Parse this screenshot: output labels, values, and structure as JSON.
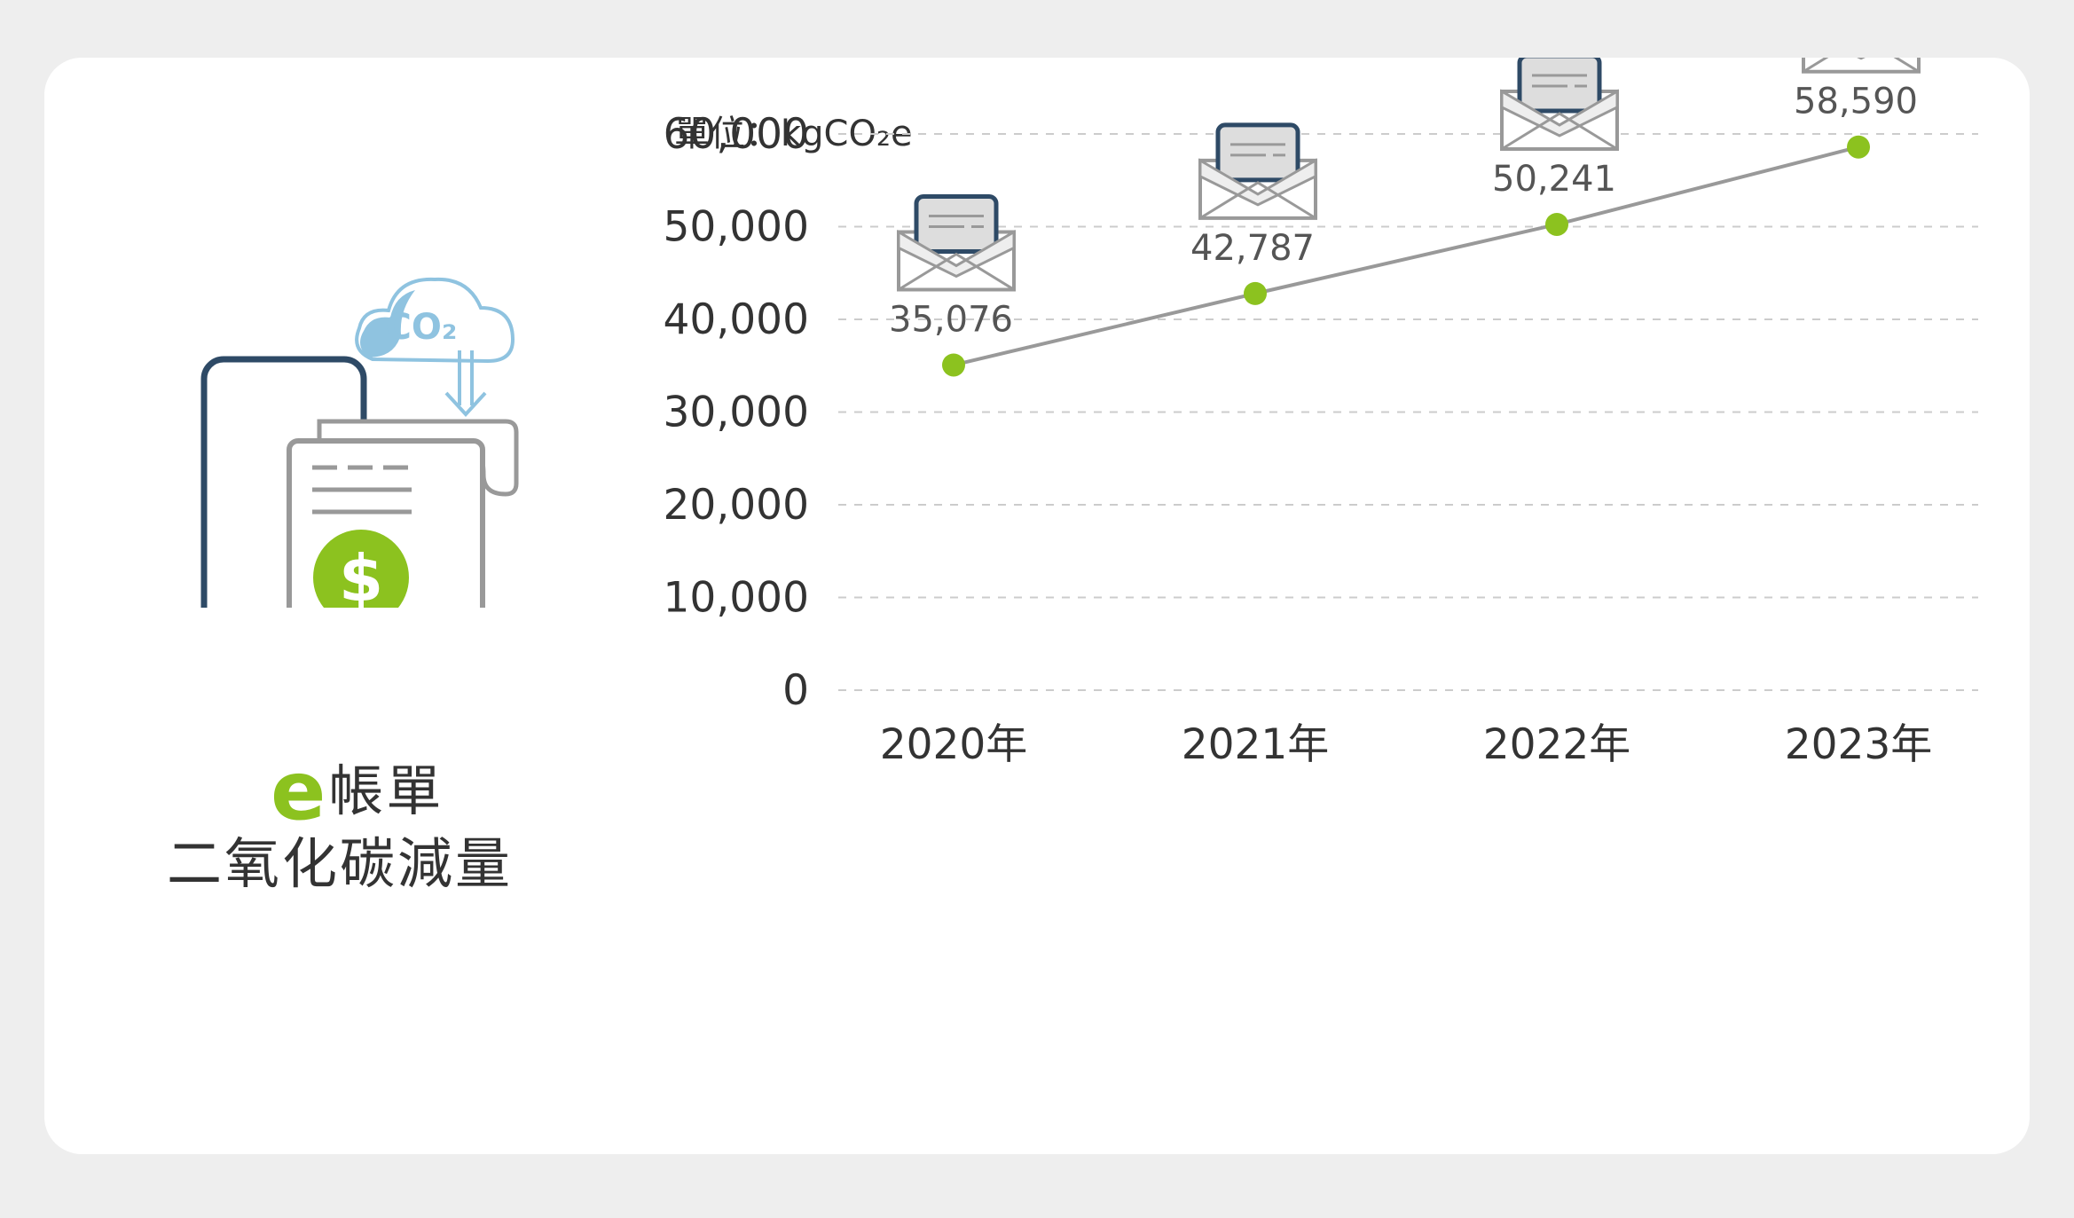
{
  "illustration": {
    "title_prefix": "e",
    "title_line1": "帳單",
    "title_line2": "二氧化碳減量",
    "cloud_label": "CO₂",
    "coin_symbol": "$"
  },
  "chart_data": {
    "type": "line",
    "unit_label": "單位：kgCO₂e",
    "categories": [
      "2020年",
      "2021年",
      "2022年",
      "2023年"
    ],
    "values": [
      35076,
      42787,
      50241,
      58590
    ],
    "value_labels": [
      "35,076",
      "42,787",
      "50,241",
      "58,590"
    ],
    "ylim": [
      0,
      60000
    ],
    "yticks": [
      0,
      10000,
      20000,
      30000,
      40000,
      50000,
      60000
    ],
    "ytick_labels": [
      "0",
      "10,000",
      "20,000",
      "30,000",
      "40,000",
      "50,000",
      "60,000"
    ],
    "grid": true,
    "line_color": "#999999",
    "marker_color": "#8cc21f",
    "marker_icon": "envelope-icon"
  },
  "colors": {
    "green": "#8cc21f",
    "navy": "#2e4a66",
    "gray": "#999999",
    "light_blue": "#8fc3e0"
  }
}
